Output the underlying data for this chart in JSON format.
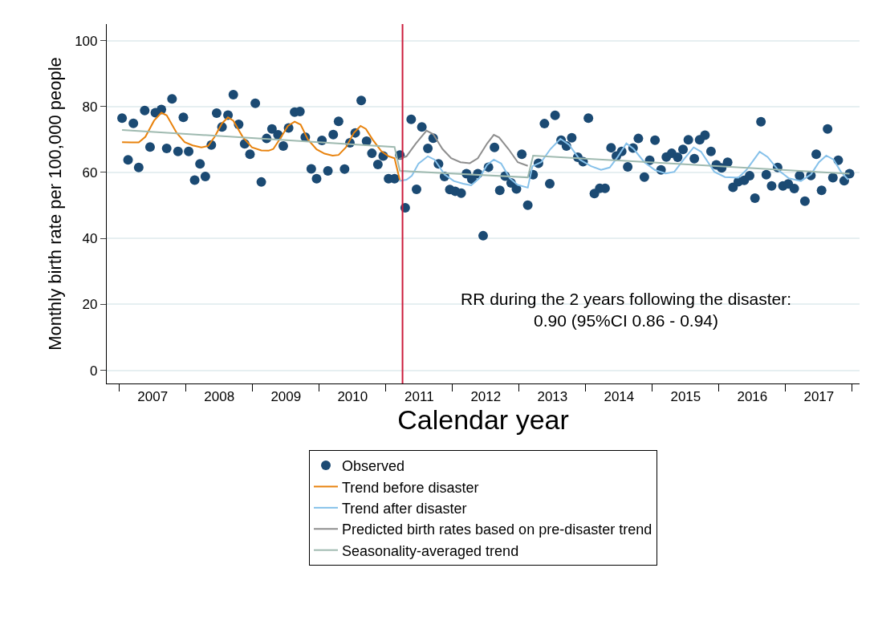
{
  "chart_data": {
    "type": "line",
    "xlabel": "Calendar year",
    "ylabel": "Monthly birth rate per 100,000 people",
    "annotations": [
      "RR during the 2 years following the disaster:\n0.90 (95%CI 0.86 - 0.94)"
    ],
    "xlim": [
      2006.81,
      2018.11
    ],
    "xticks": [
      {
        "value": 2007,
        "label": null
      },
      {
        "value": 2008,
        "label": null
      },
      {
        "value": 2009,
        "label": null
      },
      {
        "value": 2010,
        "label": null
      },
      {
        "value": 2011,
        "label": null
      },
      {
        "value": 2012,
        "label": null
      },
      {
        "value": 2013,
        "label": null
      },
      {
        "value": 2014,
        "label": null
      },
      {
        "value": 2015,
        "label": null
      },
      {
        "value": 2016,
        "label": null
      },
      {
        "value": 2017,
        "label": null
      },
      {
        "value": 2018,
        "label": null
      },
      {
        "value": 2007.5,
        "label": "2007"
      },
      {
        "value": 2008.5,
        "label": "2008"
      },
      {
        "value": 2009.5,
        "label": "2009"
      },
      {
        "value": 2010.5,
        "label": "2010"
      },
      {
        "value": 2011.5,
        "label": "2011"
      },
      {
        "value": 2012.5,
        "label": "2012"
      },
      {
        "value": 2013.5,
        "label": "2013"
      },
      {
        "value": 2014.5,
        "label": "2014"
      },
      {
        "value": 2015.5,
        "label": "2015"
      },
      {
        "value": 2016.5,
        "label": "2016"
      },
      {
        "value": 2017.5,
        "label": "2017"
      }
    ],
    "ylim": [
      -4,
      105
    ],
    "yticks": [
      0,
      20,
      40,
      60,
      80,
      100
    ],
    "grid": "y",
    "legend": "bottom",
    "ref_lines": [
      {
        "axis": "x",
        "value": 2011.25,
        "color": "#cc1c3c"
      }
    ],
    "series": [
      {
        "name": "Observed",
        "type": "scatter",
        "marker": "circle",
        "color": "#1b4a73",
        "x": [
          2007.04,
          2007.13,
          2007.21,
          2007.29,
          2007.38,
          2007.46,
          2007.54,
          2007.63,
          2007.71,
          2007.79,
          2007.88,
          2007.96,
          2008.04,
          2008.13,
          2008.21,
          2008.29,
          2008.38,
          2008.46,
          2008.54,
          2008.63,
          2008.71,
          2008.79,
          2008.88,
          2008.96,
          2009.04,
          2009.13,
          2009.21,
          2009.29,
          2009.38,
          2009.46,
          2009.54,
          2009.63,
          2009.71,
          2009.79,
          2009.88,
          2009.96,
          2010.04,
          2010.13,
          2010.21,
          2010.29,
          2010.38,
          2010.46,
          2010.54,
          2010.63,
          2010.71,
          2010.79,
          2010.88,
          2010.96,
          2011.04,
          2011.13,
          2011.21,
          2011.29,
          2011.38,
          2011.46,
          2011.54,
          2011.63,
          2011.71,
          2011.79,
          2011.88,
          2011.96,
          2012.04,
          2012.13,
          2012.21,
          2012.29,
          2012.38,
          2012.46,
          2012.54,
          2012.63,
          2012.71,
          2012.79,
          2012.88,
          2012.96,
          2013.04,
          2013.13,
          2013.21,
          2013.29,
          2013.38,
          2013.46,
          2013.54,
          2013.63,
          2013.71,
          2013.79,
          2013.88,
          2013.96,
          2014.04,
          2014.13,
          2014.21,
          2014.29,
          2014.38,
          2014.46,
          2014.54,
          2014.63,
          2014.71,
          2014.79,
          2014.88,
          2014.96,
          2015.04,
          2015.13,
          2015.21,
          2015.29,
          2015.38,
          2015.46,
          2015.54,
          2015.63,
          2015.71,
          2015.79,
          2015.88,
          2015.96,
          2016.04,
          2016.13,
          2016.21,
          2016.29,
          2016.38,
          2016.46,
          2016.54,
          2016.63,
          2016.71,
          2016.79,
          2016.88,
          2016.96,
          2017.04,
          2017.13,
          2017.21,
          2017.29,
          2017.38,
          2017.46,
          2017.54,
          2017.63,
          2017.71,
          2017.79,
          2017.88,
          2017.96
        ],
        "values": [
          76.5,
          63.8,
          74.9,
          61.5,
          78.8,
          67.7,
          78.1,
          79.1,
          67.3,
          82.3,
          66.4,
          76.7,
          66.4,
          57.7,
          62.6,
          58.8,
          68.3,
          78.0,
          73.8,
          77.4,
          83.6,
          74.6,
          68.7,
          65.5,
          81.0,
          57.1,
          70.3,
          73.2,
          71.4,
          68.0,
          73.5,
          78.3,
          78.5,
          70.7,
          61.1,
          58.1,
          69.7,
          60.5,
          71.5,
          75.5,
          61.0,
          69.0,
          72.0,
          81.8,
          69.5,
          65.8,
          62.4,
          65.0,
          58.1,
          58.1,
          65.3,
          49.3,
          76.1,
          54.9,
          73.8,
          67.3,
          70.4,
          62.6,
          58.8,
          54.8,
          54.3,
          53.7,
          59.6,
          58.0,
          59.6,
          40.8,
          61.6,
          67.6,
          54.6,
          58.9,
          56.8,
          55.0,
          65.5,
          50.1,
          59.3,
          62.8,
          74.8,
          56.6,
          77.3,
          69.8,
          68.0,
          70.5,
          64.6,
          63.3,
          76.5,
          53.6,
          55.2,
          55.2,
          67.5,
          65.0,
          66.4,
          61.7,
          67.4,
          70.3,
          58.6,
          63.7,
          69.8,
          60.8,
          64.7,
          65.8,
          64.6,
          67.0,
          69.9,
          64.2,
          69.9,
          71.3,
          66.4,
          62.3,
          61.4,
          63.1,
          55.5,
          57.2,
          57.6,
          59.0,
          52.2,
          75.4,
          59.3,
          55.9,
          61.5,
          55.9,
          56.5,
          55.1,
          59.0,
          51.3,
          59.1,
          65.5,
          54.6,
          73.2,
          58.4,
          63.7,
          57.5,
          59.6
        ]
      },
      {
        "name": "Trend before disaster",
        "color": "#e8820c",
        "x": [
          2007.04,
          2007.18,
          2007.29,
          2007.39,
          2007.52,
          2007.63,
          2007.71,
          2007.86,
          2007.98,
          2008.1,
          2008.23,
          2008.33,
          2008.43,
          2008.54,
          2008.63,
          2008.71,
          2008.85,
          2008.99,
          2009.13,
          2009.24,
          2009.31,
          2009.43,
          2009.53,
          2009.63,
          2009.72,
          2009.83,
          2009.96,
          2010.08,
          2010.2,
          2010.29,
          2010.4,
          2010.52,
          2010.62,
          2010.7,
          2010.8,
          2010.93,
          2011.04,
          2011.13,
          2011.21
        ],
        "values": [
          69.2,
          69.1,
          69.1,
          70.8,
          75.7,
          78.1,
          77.3,
          72.0,
          69.2,
          68.2,
          67.6,
          68.0,
          70.8,
          74.9,
          76.7,
          75.7,
          70.8,
          67.6,
          66.7,
          66.6,
          67.1,
          70.8,
          74.1,
          75.4,
          74.5,
          70.0,
          67.0,
          65.7,
          65.1,
          65.3,
          67.6,
          72.0,
          74.1,
          73.2,
          70.0,
          66.5,
          64.9,
          64.3,
          57.6
        ]
      },
      {
        "name": "Trend after disaster",
        "color": "#86c1ea",
        "x": [
          2011.2,
          2011.31,
          2011.39,
          2011.49,
          2011.63,
          2011.73,
          2011.88,
          2012.02,
          2012.16,
          2012.28,
          2012.4,
          2012.52,
          2012.62,
          2012.73,
          2012.86,
          2012.98,
          2013.13,
          2013.2,
          2013.33,
          2013.47,
          2013.62,
          2013.75,
          2013.91,
          2014.08,
          2014.23,
          2014.36,
          2014.48,
          2014.61,
          2014.72,
          2014.88,
          2015.04,
          2015.2,
          2015.33,
          2015.47,
          2015.62,
          2015.73,
          2015.93,
          2016.09,
          2016.29,
          2016.41,
          2016.61,
          2016.73,
          2016.89,
          2017.05,
          2017.23,
          2017.38,
          2017.5,
          2017.61,
          2017.72,
          2017.83,
          2017.94
        ],
        "values": [
          57.4,
          57.8,
          59.0,
          62.7,
          64.9,
          63.9,
          59.4,
          57.4,
          56.6,
          56.1,
          58.2,
          62.3,
          63.9,
          62.7,
          58.2,
          56.2,
          55.4,
          61.9,
          63.1,
          67.1,
          70.2,
          68.4,
          63.9,
          61.9,
          60.8,
          61.5,
          64.7,
          68.8,
          67.1,
          63.1,
          60.7,
          59.7,
          60.2,
          63.9,
          67.6,
          66.3,
          60.2,
          58.6,
          58.4,
          60.7,
          66.3,
          64.7,
          60.7,
          58.2,
          57.4,
          59.4,
          63.1,
          65.1,
          63.9,
          60.2,
          57.8
        ]
      },
      {
        "name": "Predicted birth rates based on pre-disaster trend",
        "color": "#8e8e8e",
        "x": [
          2011.2,
          2011.31,
          2011.45,
          2011.61,
          2011.71,
          2011.85,
          2011.98,
          2012.12,
          2012.26,
          2012.38,
          2012.52,
          2012.62,
          2012.7,
          2012.84,
          2012.98,
          2013.13
        ],
        "values": [
          64.1,
          64.9,
          68.8,
          72.7,
          71.6,
          67.1,
          64.3,
          63.1,
          62.8,
          64.3,
          68.8,
          71.4,
          70.6,
          67.1,
          63.1,
          62.0
        ]
      },
      {
        "name": "Seasonality-averaged trend",
        "color": "#9fbab0",
        "x": [
          2007.04,
          2011.13,
          2011.21,
          2013.13,
          2013.21,
          2017.96
        ],
        "values": [
          72.9,
          67.7,
          60.5,
          58.5,
          65.1,
          59.6
        ]
      }
    ]
  }
}
